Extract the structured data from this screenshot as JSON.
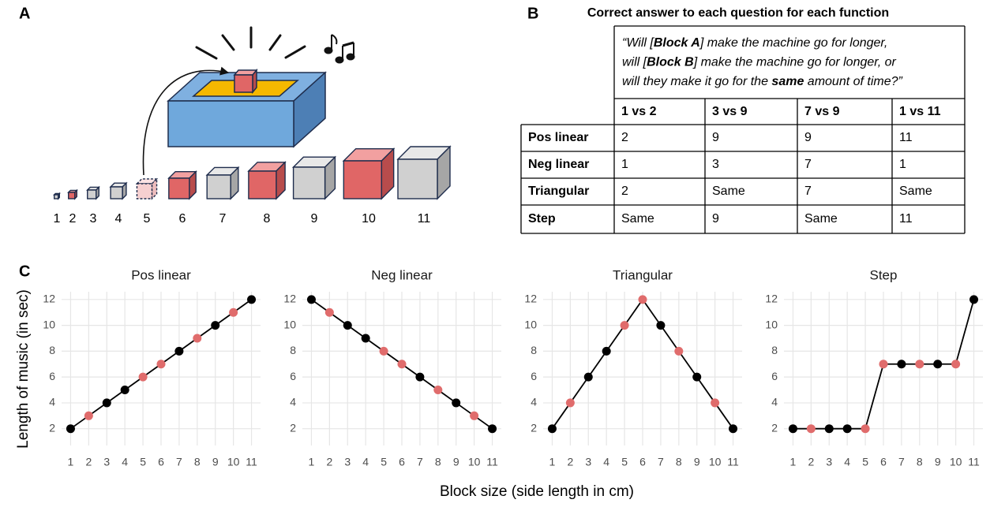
{
  "panel_labels": {
    "a": "A",
    "b": "B",
    "c": "C"
  },
  "diagram": {
    "block_labels": [
      "1",
      "2",
      "3",
      "4",
      "5",
      "6",
      "7",
      "8",
      "9",
      "10",
      "11"
    ]
  },
  "table": {
    "title": "Correct answer to each question for each function",
    "question_lines": [
      [
        "“Will [",
        "Block A",
        "] make the machine go for longer,"
      ],
      [
        "will [",
        "Block B",
        "] make the machine go for longer, or"
      ],
      [
        "will they make it go for the ",
        "same",
        " amount of time?”"
      ]
    ],
    "columns": [
      "1 vs 2",
      "3 vs 9",
      "7 vs 9",
      "1 vs 11"
    ],
    "rows": [
      {
        "label": "Pos linear",
        "cells": [
          "2",
          "9",
          "9",
          "11"
        ]
      },
      {
        "label": "Neg linear",
        "cells": [
          "1",
          "3",
          "7",
          "1"
        ]
      },
      {
        "label": "Triangular",
        "cells": [
          "2",
          "Same",
          "7",
          "Same"
        ]
      },
      {
        "label": "Step",
        "cells": [
          "Same",
          "9",
          "Same",
          "11"
        ]
      }
    ]
  },
  "figure": {
    "x_label": "Block size (side length in cm)",
    "y_label": "Length of music (in sec)"
  },
  "chart_data": [
    {
      "type": "line",
      "title": "Pos linear",
      "x": [
        1,
        2,
        3,
        4,
        5,
        6,
        7,
        8,
        9,
        10,
        11
      ],
      "xlim": [
        0.5,
        11.5
      ],
      "xticks": [
        1,
        2,
        3,
        4,
        5,
        6,
        7,
        8,
        9,
        10,
        11
      ],
      "ylim": [
        0.7,
        12.6
      ],
      "yticks": [
        2,
        4,
        6,
        8,
        10,
        12
      ],
      "grid": true,
      "series": [
        {
          "color": "#000000",
          "values": [
            2,
            3,
            4,
            5,
            6,
            7,
            8,
            9,
            10,
            11,
            12
          ],
          "point_colors": [
            "#000000",
            "#e06c6c",
            "#000000",
            "#000000",
            "#e06c6c",
            "#e06c6c",
            "#000000",
            "#e06c6c",
            "#000000",
            "#e06c6c",
            "#000000"
          ]
        }
      ]
    },
    {
      "type": "line",
      "title": "Neg linear",
      "x": [
        1,
        2,
        3,
        4,
        5,
        6,
        7,
        8,
        9,
        10,
        11
      ],
      "xlim": [
        0.5,
        11.5
      ],
      "xticks": [
        1,
        2,
        3,
        4,
        5,
        6,
        7,
        8,
        9,
        10,
        11
      ],
      "ylim": [
        0.7,
        12.6
      ],
      "yticks": [
        2,
        4,
        6,
        8,
        10,
        12
      ],
      "grid": true,
      "series": [
        {
          "color": "#000000",
          "values": [
            12,
            11,
            10,
            9,
            8,
            7,
            6,
            5,
            4,
            3,
            2
          ],
          "point_colors": [
            "#000000",
            "#e06c6c",
            "#000000",
            "#000000",
            "#e06c6c",
            "#e06c6c",
            "#000000",
            "#e06c6c",
            "#000000",
            "#e06c6c",
            "#000000"
          ]
        }
      ]
    },
    {
      "type": "line",
      "title": "Triangular",
      "x": [
        1,
        2,
        3,
        4,
        5,
        6,
        7,
        8,
        9,
        10,
        11
      ],
      "xlim": [
        0.5,
        11.5
      ],
      "xticks": [
        1,
        2,
        3,
        4,
        5,
        6,
        7,
        8,
        9,
        10,
        11
      ],
      "ylim": [
        0.7,
        12.6
      ],
      "yticks": [
        2,
        4,
        6,
        8,
        10,
        12
      ],
      "grid": true,
      "series": [
        {
          "color": "#000000",
          "values": [
            2,
            4,
            6,
            8,
            10,
            12,
            10,
            8,
            6,
            4,
            2
          ],
          "point_colors": [
            "#000000",
            "#e06c6c",
            "#000000",
            "#000000",
            "#e06c6c",
            "#e06c6c",
            "#000000",
            "#e06c6c",
            "#000000",
            "#e06c6c",
            "#000000"
          ]
        }
      ]
    },
    {
      "type": "line",
      "title": "Step",
      "x": [
        1,
        2,
        3,
        4,
        5,
        6,
        7,
        8,
        9,
        10,
        11
      ],
      "xlim": [
        0.5,
        11.5
      ],
      "xticks": [
        1,
        2,
        3,
        4,
        5,
        6,
        7,
        8,
        9,
        10,
        11
      ],
      "ylim": [
        0.7,
        12.6
      ],
      "yticks": [
        2,
        4,
        6,
        8,
        10,
        12
      ],
      "grid": true,
      "series": [
        {
          "color": "#000000",
          "values": [
            2,
            2,
            2,
            2,
            2,
            7,
            7,
            7,
            7,
            7,
            12
          ],
          "point_colors": [
            "#000000",
            "#e06c6c",
            "#000000",
            "#000000",
            "#e06c6c",
            "#e06c6c",
            "#000000",
            "#e06c6c",
            "#000000",
            "#e06c6c",
            "#000000"
          ]
        }
      ]
    }
  ]
}
